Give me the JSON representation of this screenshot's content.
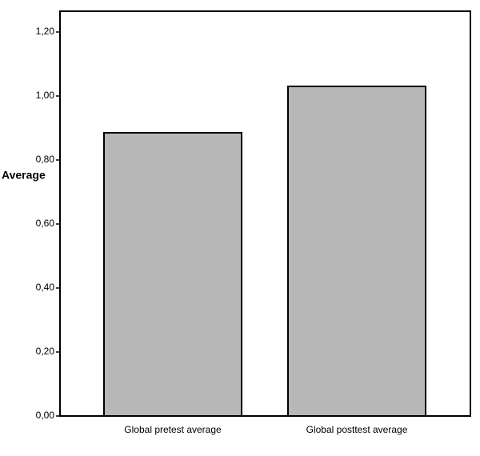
{
  "chart_data": {
    "type": "bar",
    "y_label": "Average",
    "categories": [
      "Global pretest average",
      "Global posttest average"
    ],
    "values": [
      0.885,
      1.03
    ],
    "color": "#b8b8b8",
    "ylim": [
      0,
      1.265
    ],
    "yticks": [
      {
        "value": 0,
        "label": "0,00"
      },
      {
        "value": 0.2,
        "label": "0,20"
      },
      {
        "value": 0.4,
        "label": "0,40"
      },
      {
        "value": 0.6,
        "label": "0,60"
      },
      {
        "value": 0.8,
        "label": "0,80"
      },
      {
        "value": 1.0,
        "label": "1,00"
      },
      {
        "value": 1.2,
        "label": "1,20"
      }
    ],
    "grid": false
  }
}
